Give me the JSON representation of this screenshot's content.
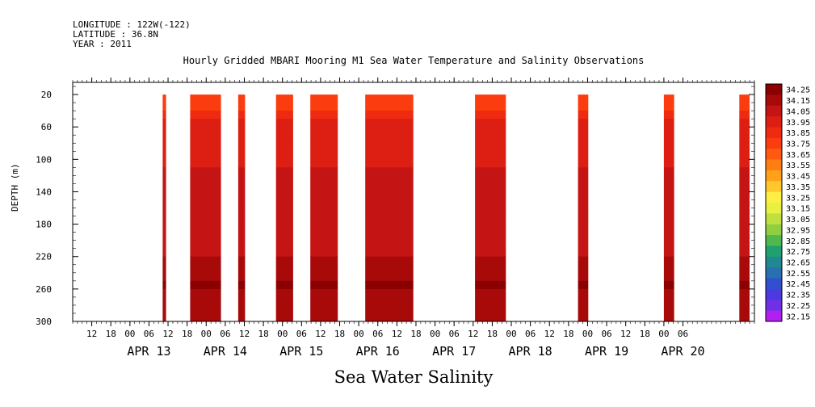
{
  "meta": {
    "longitude": "LONGITUDE : 122W(-122)",
    "latitude": "LATITUDE : 36.8N",
    "year": "YEAR : 2011"
  },
  "chart_data": {
    "type": "heatmap",
    "title": "Hourly Gridded MBARI Mooring M1 Sea Water Temperature and Salinity Observations",
    "xlabel": "Sea Water Salinity",
    "ylabel": "DEPTH (m)",
    "x_hour_ticks": [
      "12",
      "18",
      "00",
      "06",
      "12",
      "18",
      "00",
      "06",
      "12",
      "18",
      "00",
      "06",
      "12",
      "18",
      "00",
      "06",
      "12",
      "18",
      "00",
      "06",
      "12",
      "18",
      "00",
      "06",
      "12",
      "18",
      "00",
      "06",
      "12",
      "18",
      "00",
      "06"
    ],
    "x_day_labels": [
      "APR 13",
      "APR 14",
      "APR 15",
      "APR 16",
      "APR 17",
      "APR 18",
      "APR 19",
      "APR 20"
    ],
    "xlim_hours": [
      -16,
      127
    ],
    "y_ticks": [
      20,
      60,
      100,
      140,
      180,
      220,
      260,
      300
    ],
    "ylim": [
      300,
      5
    ],
    "colorbar": {
      "labels": [
        "34.25",
        "34.15",
        "34.05",
        "33.95",
        "33.85",
        "33.75",
        "33.65",
        "33.55",
        "33.45",
        "33.35",
        "33.25",
        "33.15",
        "33.05",
        "32.95",
        "32.85",
        "32.75",
        "32.65",
        "32.55",
        "32.45",
        "32.35",
        "32.25",
        "32.15"
      ],
      "colors": [
        "#8b0000",
        "#a80a0a",
        "#c41414",
        "#dd1e12",
        "#ee2a10",
        "#fb3c0e",
        "#ff5a10",
        "#ff7e14",
        "#ffa21a",
        "#ffc82a",
        "#ffee44",
        "#e8f040",
        "#c0e040",
        "#90d040",
        "#50b850",
        "#20a070",
        "#208890",
        "#2870b0",
        "#3050d0",
        "#4a3ae0",
        "#7030e8",
        "#b020f0"
      ]
    },
    "data_blocks": [
      {
        "start": 4,
        "end": 5
      },
      {
        "start": 12,
        "end": 21
      },
      {
        "start": 26,
        "end": 28
      },
      {
        "start": 37,
        "end": 42
      },
      {
        "start": 47,
        "end": 55
      },
      {
        "start": 63,
        "end": 77
      },
      {
        "start": 95,
        "end": 104
      },
      {
        "start": 125,
        "end": 128
      },
      {
        "start": 150,
        "end": 153
      },
      {
        "start": 172,
        "end": 175
      }
    ],
    "profile": [
      {
        "depth": 20,
        "value": 33.7
      },
      {
        "depth": 40,
        "value": 33.85
      },
      {
        "depth": 60,
        "value": 33.95
      },
      {
        "depth": 100,
        "value": 34.0
      },
      {
        "depth": 140,
        "value": 34.05
      },
      {
        "depth": 200,
        "value": 34.07
      },
      {
        "depth": 250,
        "value": 34.2
      },
      {
        "depth": 300,
        "value": 34.1
      }
    ]
  }
}
